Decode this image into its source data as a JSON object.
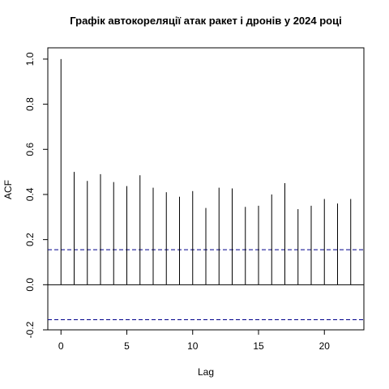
{
  "chart_data": {
    "type": "bar",
    "title": "Графік автокореляції атак ракет і дронів у 2024 році",
    "xlabel": "Lag",
    "ylabel": "ACF",
    "xlim": [
      -1.0,
      23.0
    ],
    "ylim": [
      -0.2,
      1.05
    ],
    "x_ticks": [
      0,
      5,
      10,
      15,
      20
    ],
    "x_tick_labels": [
      "0",
      "5",
      "10",
      "15",
      "20"
    ],
    "y_ticks": [
      -0.2,
      0.0,
      0.2,
      0.4,
      0.6,
      0.8,
      1.0
    ],
    "y_tick_labels": [
      "-0.2",
      "0.0",
      "0.2",
      "0.4",
      "0.6",
      "0.8",
      "1.0"
    ],
    "lags": [
      0,
      1,
      2,
      3,
      4,
      5,
      6,
      7,
      8,
      9,
      10,
      11,
      12,
      13,
      14,
      15,
      16,
      17,
      18,
      19,
      20,
      21,
      22
    ],
    "values": [
      1.0,
      0.5,
      0.46,
      0.49,
      0.455,
      0.437,
      0.485,
      0.43,
      0.41,
      0.39,
      0.415,
      0.34,
      0.43,
      0.427,
      0.345,
      0.35,
      0.4,
      0.45,
      0.335,
      0.35,
      0.38,
      0.36,
      0.38
    ],
    "confidence_bound": 0.155,
    "zero_line": true,
    "colors": {
      "bars": "#000000",
      "confidence": "#00008b"
    }
  }
}
